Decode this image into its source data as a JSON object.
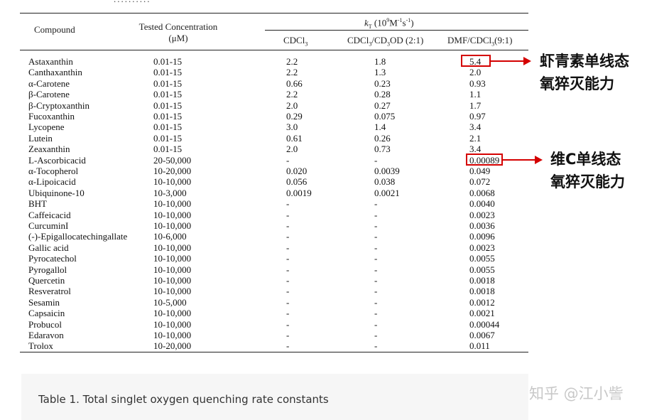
{
  "top_cropped_text": "..........",
  "table": {
    "headers": {
      "compound": "Compound",
      "conc_line1": "Tested Concentration",
      "conc_line2": "(μM)",
      "kt_symbol": "k",
      "kt_sub": "T",
      "kt_unit_pre": "(10",
      "kt_exp": "9",
      "kt_unit_mid": "M",
      "kt_exp2": "-1",
      "kt_unit_s": "s",
      "kt_exp3": "-1",
      "kt_unit_end": ")",
      "col1": "CDCl",
      "col1_sub": "3",
      "col2": "CDCl",
      "col2_sub": "3",
      "col2_mid": "/CD",
      "col2_sub2": "3",
      "col2_end": "OD (2:1)",
      "col3": "DMF/CDCl",
      "col3_sub": "3",
      "col3_end": "(9:1)"
    },
    "rows": [
      {
        "name": "Astaxanthin",
        "conc": "0.01-15",
        "v1": "2.2",
        "v2": "1.8",
        "v3": "5.4"
      },
      {
        "name": "Canthaxanthin",
        "conc": "0.01-15",
        "v1": "2.2",
        "v2": "1.3",
        "v3": "2.0"
      },
      {
        "name": "α-Carotene",
        "conc": "0.01-15",
        "v1": "0.66",
        "v2": "0.23",
        "v3": "0.93"
      },
      {
        "name": "β-Carotene",
        "conc": "0.01-15",
        "v1": "2.2",
        "v2": "0.28",
        "v3": "1.1"
      },
      {
        "name": "β-Cryptoxanthin",
        "conc": "0.01-15",
        "v1": "2.0",
        "v2": "0.27",
        "v3": "1.7"
      },
      {
        "name": "Fucoxanthin",
        "conc": "0.01-15",
        "v1": "0.29",
        "v2": "0.075",
        "v3": "0.97"
      },
      {
        "name": "Lycopene",
        "conc": "0.01-15",
        "v1": "3.0",
        "v2": "1.4",
        "v3": "3.4"
      },
      {
        "name": "Lutein",
        "conc": "0.01-15",
        "v1": "0.61",
        "v2": "0.26",
        "v3": "2.1"
      },
      {
        "name": "Zeaxanthin",
        "conc": "0.01-15",
        "v1": "2.0",
        "v2": "0.73",
        "v3": "3.4"
      },
      {
        "name": "L-Ascorbicacid",
        "conc": "20-50,000",
        "v1": "-",
        "v2": "-",
        "v3": "0.00089"
      },
      {
        "name": "α-Tocopherol",
        "conc": "10-20,000",
        "v1": "0.020",
        "v2": "0.0039",
        "v3": "0.049"
      },
      {
        "name": "α-Lipoicacid",
        "conc": "10-10,000",
        "v1": "0.056",
        "v2": "0.038",
        "v3": "0.072"
      },
      {
        "name": "Ubiquinone-10",
        "conc": "10-3,000",
        "v1": "0.0019",
        "v2": "0.0021",
        "v3": "0.0068"
      },
      {
        "name": "BHT",
        "conc": "10-10,000",
        "v1": "-",
        "v2": "-",
        "v3": "0.0040"
      },
      {
        "name": "Caffeicacid",
        "conc": "10-10,000",
        "v1": "-",
        "v2": "-",
        "v3": "0.0023"
      },
      {
        "name": "CurcuminI",
        "conc": "10-10,000",
        "v1": "-",
        "v2": "-",
        "v3": "0.0036"
      },
      {
        "name": "(-)-Epigallocatechingallate",
        "conc": "10-6,000",
        "v1": "-",
        "v2": "-",
        "v3": "0.0096"
      },
      {
        "name": "Gallic acid",
        "conc": "10-10,000",
        "v1": "-",
        "v2": "-",
        "v3": "0.0023"
      },
      {
        "name": "Pyrocatechol",
        "conc": "10-10,000",
        "v1": "-",
        "v2": "-",
        "v3": "0.0055"
      },
      {
        "name": "Pyrogallol",
        "conc": "10-10,000",
        "v1": "-",
        "v2": "-",
        "v3": "0.0055"
      },
      {
        "name": "Quercetin",
        "conc": "10-10,000",
        "v1": "-",
        "v2": "-",
        "v3": "0.0018"
      },
      {
        "name": "Resveratrol",
        "conc": "10-10,000",
        "v1": "-",
        "v2": "-",
        "v3": "0.0018"
      },
      {
        "name": "Sesamin",
        "conc": "10-5,000",
        "v1": "-",
        "v2": "-",
        "v3": "0.0012"
      },
      {
        "name": "Capsaicin",
        "conc": "10-10,000",
        "v1": "-",
        "v2": "-",
        "v3": "0.0021"
      },
      {
        "name": "Probucol",
        "conc": "10-10,000",
        "v1": "-",
        "v2": "-",
        "v3": "0.00044"
      },
      {
        "name": "Edaravon",
        "conc": "10-10,000",
        "v1": "-",
        "v2": "-",
        "v3": "0.0067"
      },
      {
        "name": "Trolox",
        "conc": "10-20,000",
        "v1": "-",
        "v2": "-",
        "v3": "0.011"
      }
    ]
  },
  "annotations": {
    "astaxanthin_line1": "虾青素单线态",
    "astaxanthin_line2": "氧猝灭能力",
    "vitc_line1": "维C单线态",
    "vitc_line2": "氧猝灭能力",
    "highlight_color": "#d40000"
  },
  "caption": "Table 1. Total singlet oxygen quenching rate constants",
  "watermark": "知乎 @江小訾"
}
